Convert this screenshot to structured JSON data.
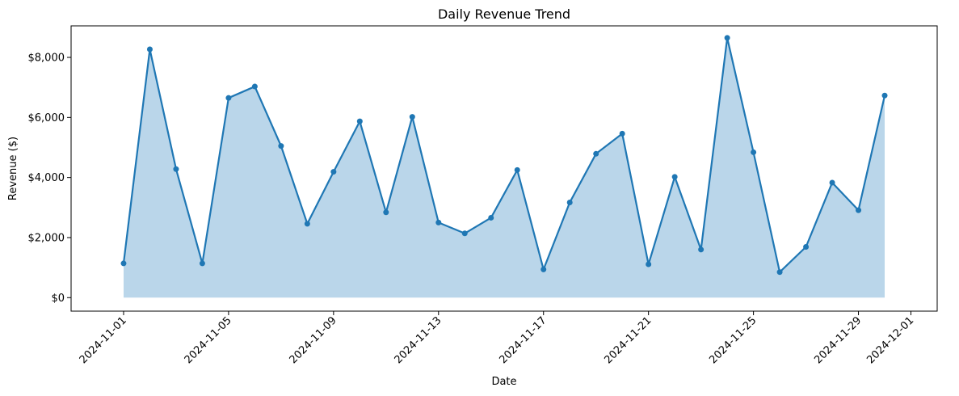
{
  "chart_data": {
    "type": "area",
    "title": "Daily Revenue Trend",
    "xlabel": "Date",
    "ylabel": "Revenue ($)",
    "line_color": "#1f77b4",
    "fill_color": "#bad6ea",
    "xlim": [
      "2024-10-30",
      "2024-12-02"
    ],
    "ylim": [
      -450,
      9050
    ],
    "y_ticks": [
      {
        "value": 0,
        "label": "$0"
      },
      {
        "value": 2000,
        "label": "$2,000"
      },
      {
        "value": 4000,
        "label": "$4,000"
      },
      {
        "value": 6000,
        "label": "$6,000"
      },
      {
        "value": 8000,
        "label": "$8,000"
      }
    ],
    "x_ticks": [
      {
        "value": "2024-11-01",
        "label": "2024-11-01"
      },
      {
        "value": "2024-11-05",
        "label": "2024-11-05"
      },
      {
        "value": "2024-11-09",
        "label": "2024-11-09"
      },
      {
        "value": "2024-11-13",
        "label": "2024-11-13"
      },
      {
        "value": "2024-11-17",
        "label": "2024-11-17"
      },
      {
        "value": "2024-11-21",
        "label": "2024-11-21"
      },
      {
        "value": "2024-11-25",
        "label": "2024-11-25"
      },
      {
        "value": "2024-11-29",
        "label": "2024-11-29"
      },
      {
        "value": "2024-12-01",
        "label": "2024-12-01"
      }
    ],
    "x": [
      "2024-11-01",
      "2024-11-02",
      "2024-11-03",
      "2024-11-04",
      "2024-11-05",
      "2024-11-06",
      "2024-11-07",
      "2024-11-08",
      "2024-11-09",
      "2024-11-10",
      "2024-11-11",
      "2024-11-12",
      "2024-11-13",
      "2024-11-14",
      "2024-11-15",
      "2024-11-16",
      "2024-11-17",
      "2024-11-18",
      "2024-11-19",
      "2024-11-20",
      "2024-11-21",
      "2024-11-22",
      "2024-11-23",
      "2024-11-24",
      "2024-11-25",
      "2024-11-26",
      "2024-11-27",
      "2024-11-28",
      "2024-11-29",
      "2024-11-30"
    ],
    "values": [
      1140,
      8270,
      4280,
      1140,
      6650,
      7030,
      5050,
      2460,
      4190,
      5870,
      2840,
      6020,
      2500,
      2140,
      2660,
      4250,
      940,
      3170,
      4790,
      5460,
      1110,
      4020,
      1600,
      8650,
      4840,
      850,
      1690,
      3830,
      2910,
      6730
    ],
    "grid": false,
    "legend": "none"
  }
}
